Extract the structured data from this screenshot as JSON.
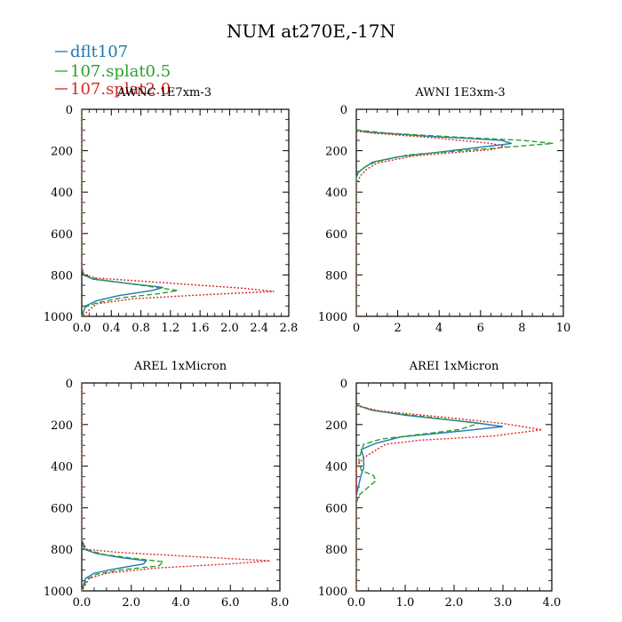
{
  "figure_title": "NUM at270E,-17N",
  "legend": [
    {
      "label": "dflt107",
      "color": "#1f77b4",
      "dash": "solid"
    },
    {
      "label": "107.splat0.5",
      "color": "#2ca02c",
      "dash": "dashed"
    },
    {
      "label": "107.splat2.0",
      "color": "#d62728",
      "dash": "dotted"
    }
  ],
  "chart_data": [
    {
      "type": "line",
      "title": "AWNC  1E7xm-3",
      "xlabel": "",
      "ylabel": "",
      "xlim": [
        0,
        2.8
      ],
      "ylim": [
        1000,
        0
      ],
      "xticks": [
        0,
        0.4,
        0.8,
        1.2,
        1.6,
        2.0,
        2.4,
        2.8
      ],
      "xtick_labels": [
        "0.0",
        "0.4",
        "0.8",
        "1.2",
        "1.6",
        "2.0",
        "2.4",
        "2.8"
      ],
      "yticks": [
        0,
        200,
        400,
        600,
        800,
        1000
      ],
      "ytick_labels": [
        "0",
        "200",
        "400",
        "600",
        "800",
        "1000"
      ],
      "series": [
        {
          "name": "dflt107",
          "points": [
            [
              0,
              0
            ],
            [
              0,
              760
            ],
            [
              0.02,
              800
            ],
            [
              0.15,
              820
            ],
            [
              0.6,
              840
            ],
            [
              1.1,
              860
            ],
            [
              0.95,
              875
            ],
            [
              0.5,
              900
            ],
            [
              0.2,
              925
            ],
            [
              0.05,
              950
            ],
            [
              0,
              1000
            ]
          ]
        },
        {
          "name": "107.splat0.5",
          "points": [
            [
              0,
              0
            ],
            [
              0,
              760
            ],
            [
              0.02,
              800
            ],
            [
              0.2,
              820
            ],
            [
              0.7,
              845
            ],
            [
              1.3,
              875
            ],
            [
              1.05,
              890
            ],
            [
              0.55,
              910
            ],
            [
              0.2,
              935
            ],
            [
              0.05,
              955
            ],
            [
              0,
              1000
            ]
          ]
        },
        {
          "name": "107.splat2.0",
          "points": [
            [
              0,
              0
            ],
            [
              0,
              760
            ],
            [
              0.03,
              800
            ],
            [
              0.2,
              815
            ],
            [
              1.2,
              840
            ],
            [
              2.2,
              865
            ],
            [
              2.6,
              880
            ],
            [
              1.7,
              895
            ],
            [
              0.7,
              915
            ],
            [
              0.2,
              940
            ],
            [
              0,
              1000
            ]
          ]
        }
      ]
    },
    {
      "type": "line",
      "title": "AWNI  1E3xm-3",
      "xlabel": "",
      "ylabel": "",
      "xlim": [
        0,
        10
      ],
      "ylim": [
        1000,
        0
      ],
      "xticks": [
        0,
        2,
        4,
        6,
        8,
        10
      ],
      "xtick_labels": [
        "0",
        "2",
        "4",
        "6",
        "8",
        "10"
      ],
      "yticks": [
        0,
        200,
        400,
        600,
        800,
        1000
      ],
      "ytick_labels": [
        "0",
        "200",
        "400",
        "600",
        "800",
        "1000"
      ],
      "series": [
        {
          "name": "dflt107",
          "points": [
            [
              0,
              100
            ],
            [
              0.5,
              110
            ],
            [
              3.5,
              130
            ],
            [
              7,
              150
            ],
            [
              7.5,
              165
            ],
            [
              5,
              195
            ],
            [
              2,
              230
            ],
            [
              0.8,
              255
            ],
            [
              0.4,
              280
            ],
            [
              0.1,
              305
            ],
            [
              0,
              330
            ],
            [
              0,
              1000
            ]
          ]
        },
        {
          "name": "107.splat0.5",
          "points": [
            [
              0,
              100
            ],
            [
              1.5,
              115
            ],
            [
              5,
              135
            ],
            [
              8,
              150
            ],
            [
              9.5,
              165
            ],
            [
              7,
              185
            ],
            [
              2.5,
              220
            ],
            [
              0.9,
              255
            ],
            [
              0.5,
              275
            ],
            [
              0.2,
              295
            ],
            [
              0,
              320
            ],
            [
              0,
              1000
            ]
          ]
        },
        {
          "name": "107.splat2.0",
          "points": [
            [
              0,
              105
            ],
            [
              0.8,
              115
            ],
            [
              4,
              140
            ],
            [
              6.5,
              165
            ],
            [
              7.2,
              180
            ],
            [
              6.5,
              195
            ],
            [
              2.8,
              225
            ],
            [
              1,
              260
            ],
            [
              0.5,
              290
            ],
            [
              0.2,
              320
            ],
            [
              0.1,
              345
            ],
            [
              0,
              360
            ],
            [
              0,
              1000
            ]
          ]
        }
      ]
    },
    {
      "type": "line",
      "title": "AREL  1xMicron",
      "xlabel": "",
      "ylabel": "",
      "xlim": [
        0,
        8
      ],
      "ylim": [
        1000,
        0
      ],
      "xticks": [
        0,
        2,
        4,
        6,
        8
      ],
      "xtick_labels": [
        "0.0",
        "2.0",
        "4.0",
        "6.0",
        "8.0"
      ],
      "yticks": [
        0,
        200,
        400,
        600,
        800,
        1000
      ],
      "ytick_labels": [
        "0",
        "200",
        "400",
        "600",
        "800",
        "1000"
      ],
      "series": [
        {
          "name": "dflt107",
          "points": [
            [
              0,
              0
            ],
            [
              0,
              750
            ],
            [
              0.1,
              800
            ],
            [
              0.6,
              820
            ],
            [
              1.6,
              840
            ],
            [
              2.6,
              855
            ],
            [
              2.5,
              870
            ],
            [
              1.3,
              895
            ],
            [
              0.5,
              915
            ],
            [
              0.15,
              940
            ],
            [
              0,
              1000
            ]
          ]
        },
        {
          "name": "107.splat0.5",
          "points": [
            [
              0,
              0
            ],
            [
              0,
              750
            ],
            [
              0.15,
              800
            ],
            [
              0.9,
              825
            ],
            [
              2.2,
              845
            ],
            [
              3.3,
              860
            ],
            [
              3.1,
              880
            ],
            [
              1.5,
              900
            ],
            [
              0.6,
              920
            ],
            [
              0.2,
              945
            ],
            [
              0,
              1000
            ]
          ]
        },
        {
          "name": "107.splat2.0",
          "points": [
            [
              0,
              0
            ],
            [
              0,
              760
            ],
            [
              0.2,
              800
            ],
            [
              1.5,
              815
            ],
            [
              4.5,
              835
            ],
            [
              7.6,
              855
            ],
            [
              6,
              870
            ],
            [
              3,
              890
            ],
            [
              1,
              915
            ],
            [
              0.3,
              940
            ],
            [
              0,
              1000
            ]
          ]
        }
      ]
    },
    {
      "type": "line",
      "title": "AREI  1xMicron",
      "xlabel": "",
      "ylabel": "",
      "xlim": [
        0,
        4
      ],
      "ylim": [
        1000,
        0
      ],
      "xticks": [
        0,
        1,
        2,
        3,
        4
      ],
      "xtick_labels": [
        "0.0",
        "1.0",
        "2.0",
        "3.0",
        "4.0"
      ],
      "yticks": [
        0,
        200,
        400,
        600,
        800,
        1000
      ],
      "ytick_labels": [
        "0",
        "200",
        "400",
        "600",
        "800",
        "1000"
      ],
      "series": [
        {
          "name": "dflt107",
          "points": [
            [
              0,
              105
            ],
            [
              0.3,
              130
            ],
            [
              1,
              155
            ],
            [
              2.4,
              190
            ],
            [
              3,
              210
            ],
            [
              2.2,
              230
            ],
            [
              0.9,
              260
            ],
            [
              0.4,
              290
            ],
            [
              0.1,
              320
            ],
            [
              0.15,
              360
            ],
            [
              0.15,
              410
            ],
            [
              0.1,
              440
            ],
            [
              0.05,
              490
            ],
            [
              0,
              540
            ],
            [
              0,
              1000
            ]
          ]
        },
        {
          "name": "107.splat0.5",
          "points": [
            [
              0,
              105
            ],
            [
              0.4,
              135
            ],
            [
              1.5,
              165
            ],
            [
              2.5,
              195
            ],
            [
              2.1,
              225
            ],
            [
              1.2,
              250
            ],
            [
              0.5,
              270
            ],
            [
              0.15,
              295
            ],
            [
              0.1,
              330
            ],
            [
              0.05,
              370
            ],
            [
              0.1,
              420
            ],
            [
              0.35,
              445
            ],
            [
              0.4,
              470
            ],
            [
              0.25,
              500
            ],
            [
              0.05,
              540
            ],
            [
              0,
              580
            ],
            [
              0,
              1000
            ]
          ]
        },
        {
          "name": "107.splat2.0",
          "points": [
            [
              0,
              110
            ],
            [
              0.5,
              135
            ],
            [
              1.8,
              165
            ],
            [
              3,
              195
            ],
            [
              3.8,
              225
            ],
            [
              2.8,
              255
            ],
            [
              1.3,
              275
            ],
            [
              0.6,
              295
            ],
            [
              0.35,
              330
            ],
            [
              0.15,
              360
            ],
            [
              0,
              400
            ],
            [
              0,
              1000
            ]
          ]
        }
      ]
    }
  ]
}
